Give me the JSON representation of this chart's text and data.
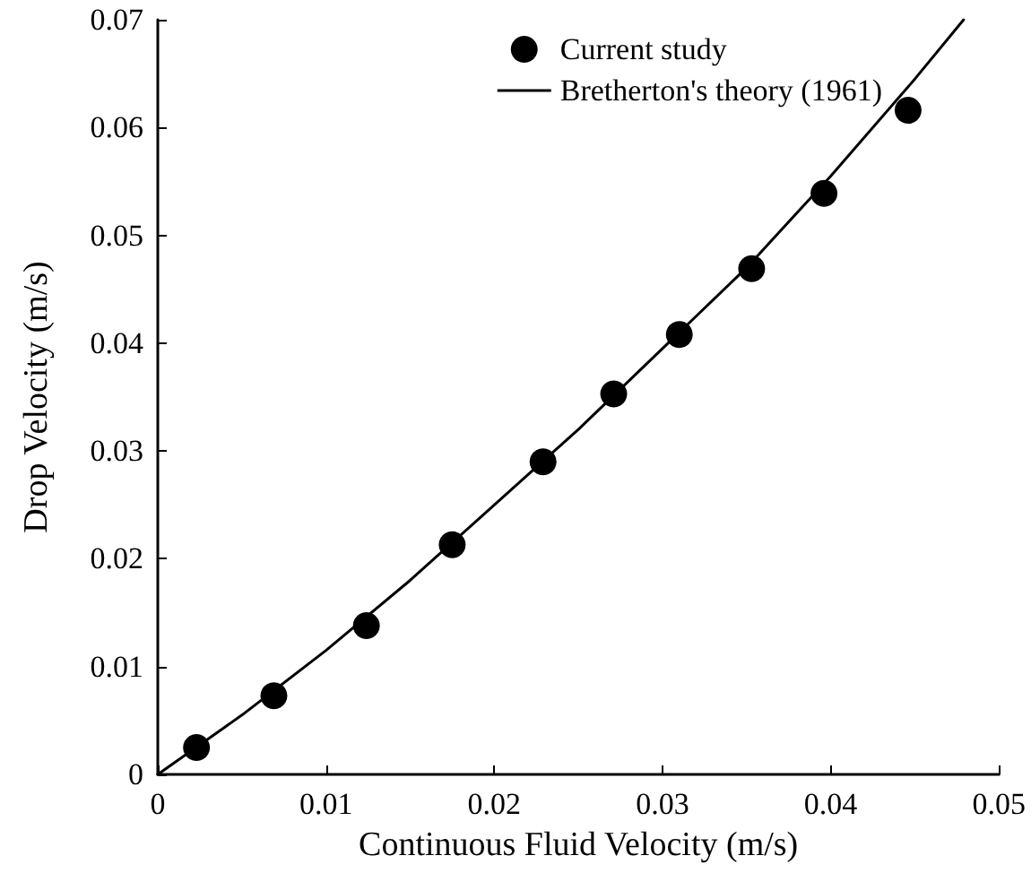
{
  "chart_data": {
    "type": "scatter",
    "xlabel": "Continuous Fluid Velocity (m/s)",
    "ylabel": "Drop Velocity (m/s)",
    "xlim": [
      0,
      0.05
    ],
    "xticks": [
      0,
      0.01,
      0.02,
      0.03,
      0.04,
      0.05
    ],
    "ylim": [
      0,
      0.07
    ],
    "yticks": [
      0,
      0.01,
      0.02,
      0.03,
      0.04,
      0.05,
      0.06,
      0.07
    ],
    "grid": false,
    "legend": "top right",
    "series": [
      {
        "name": "Current study",
        "marker": "circle",
        "color": "#000000",
        "x": [
          0.0023,
          0.0069,
          0.0124,
          0.0175,
          0.0229,
          0.0271,
          0.031,
          0.0353,
          0.0396,
          0.0446
        ],
        "values": [
          0.0025,
          0.0073,
          0.0138,
          0.0213,
          0.029,
          0.0353,
          0.0408,
          0.0469,
          0.0539,
          0.0616
        ]
      },
      {
        "name": "Bretherton's theory (1961)",
        "type": "line",
        "marker": "none",
        "line_style": "solid",
        "color": "#000000",
        "x": [
          0,
          0.005,
          0.01,
          0.015,
          0.02,
          0.025,
          0.03,
          0.035,
          0.04,
          0.045,
          0.0479
        ],
        "values": [
          0,
          0.0055,
          0.0115,
          0.018,
          0.025,
          0.032,
          0.0395,
          0.047,
          0.0555,
          0.0645,
          0.07
        ]
      }
    ]
  }
}
